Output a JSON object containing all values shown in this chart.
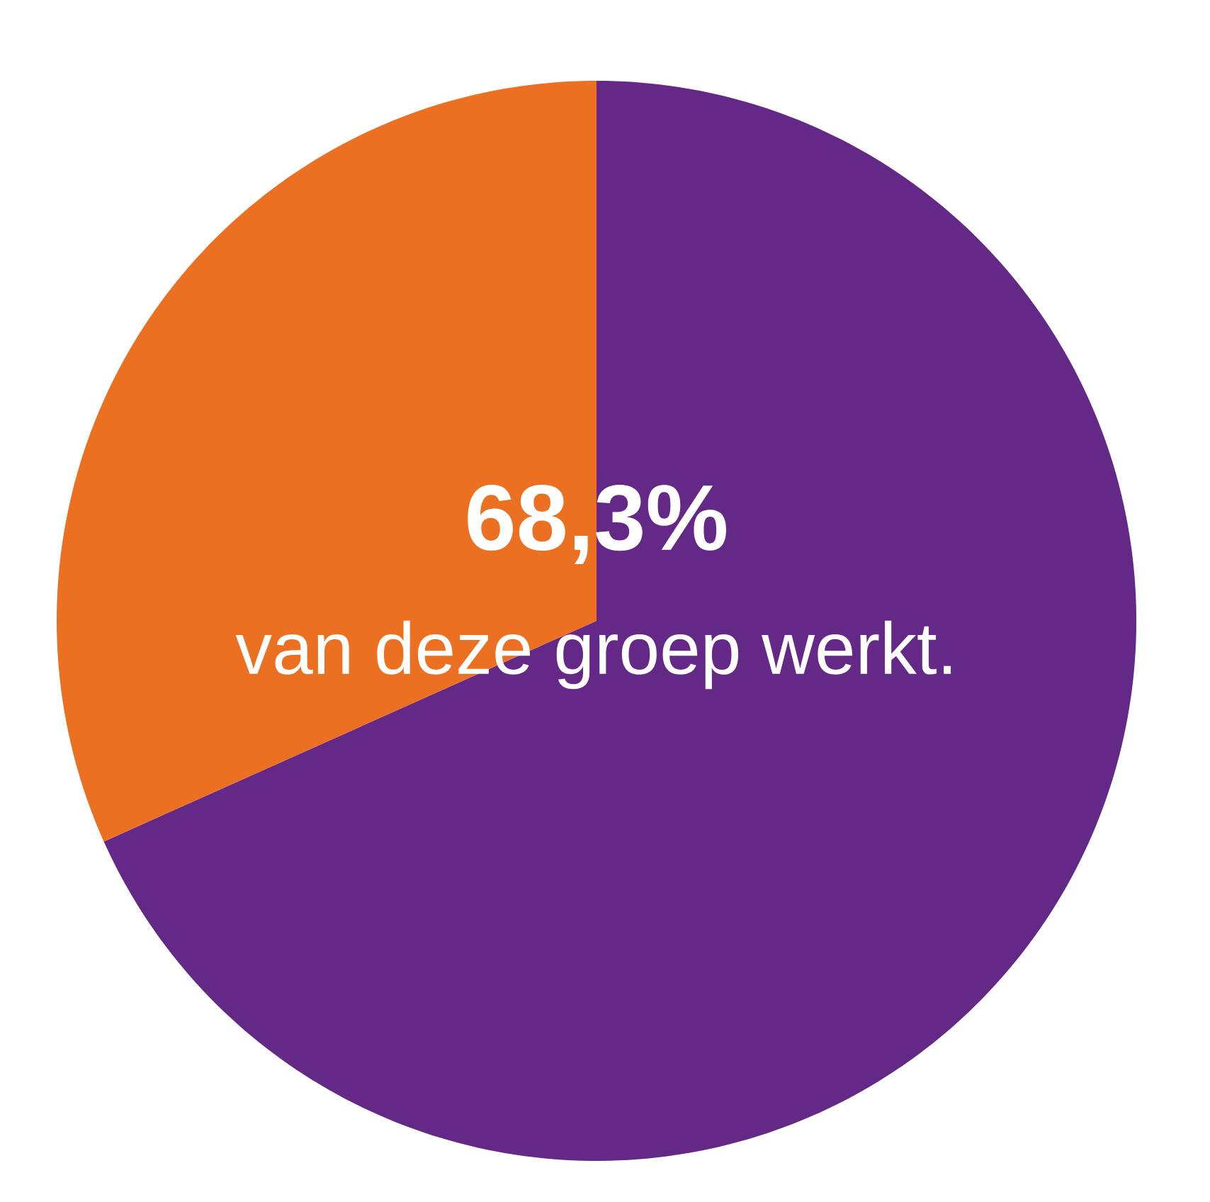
{
  "chart_data": {
    "type": "pie",
    "categories": [
      null,
      null
    ],
    "values": [
      68.3,
      31.7
    ],
    "colors": [
      "#642887",
      "#eb7021"
    ],
    "value_labels": [
      "68,3%",
      null
    ],
    "annotations": [
      "van deze groep werkt."
    ]
  }
}
